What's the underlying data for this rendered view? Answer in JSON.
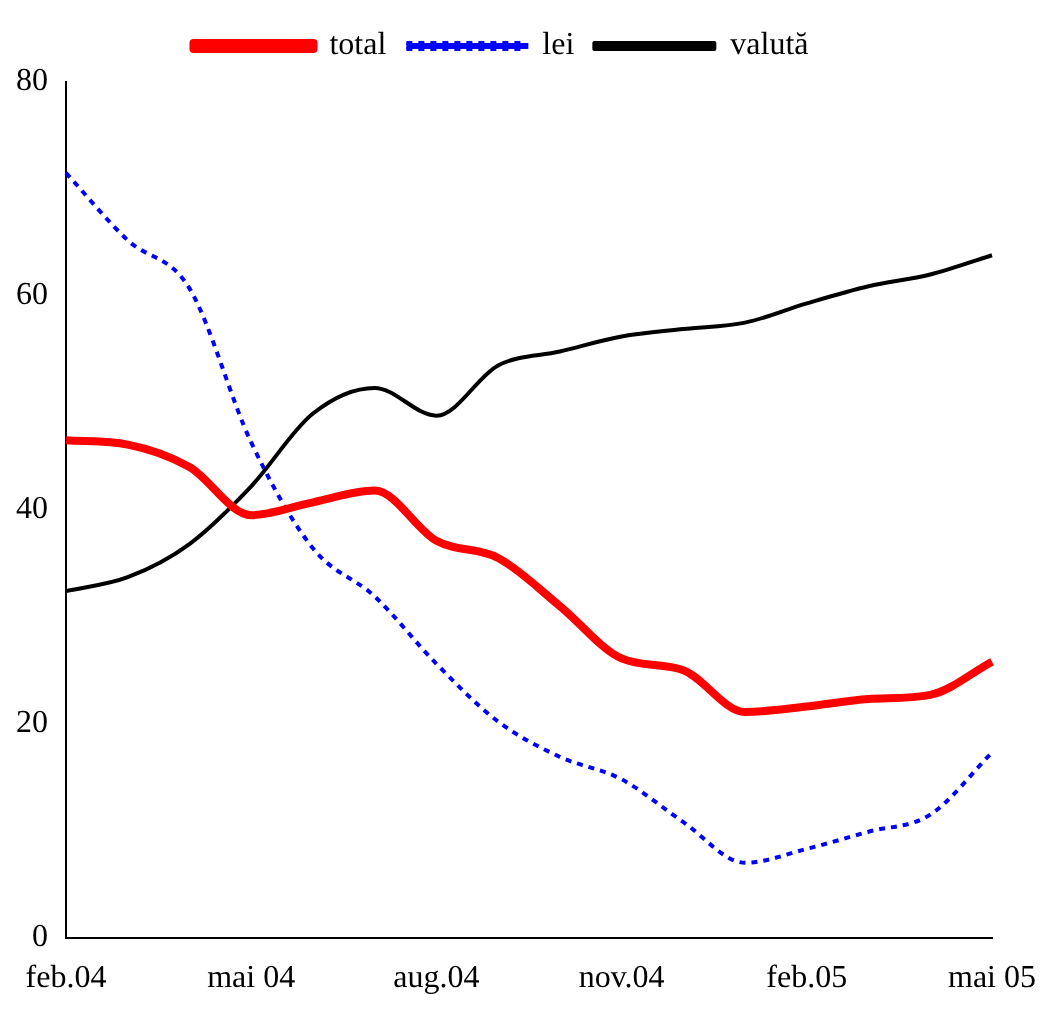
{
  "chart_data": {
    "type": "line",
    "categories": [
      "feb.04",
      null,
      null,
      "mai 04",
      null,
      null,
      "aug.04",
      null,
      null,
      "nov.04",
      null,
      null,
      "feb.05",
      null,
      null,
      "mai 05"
    ],
    "series": [
      {
        "name": "total",
        "color": "#ff0000",
        "values": [
          46.5,
          46.1,
          44,
          39.5,
          40.7,
          41.8,
          37.1,
          35.5,
          31,
          26.1,
          25,
          21.1,
          21.6,
          22.3,
          22.7,
          25.8
        ]
      },
      {
        "name": "lei",
        "color": "#0000ff",
        "line_style": "dotted",
        "values": [
          71.5,
          65.2,
          60.7,
          46.3,
          36.4,
          31.9,
          25.6,
          20.2,
          16.9,
          14.8,
          10.8,
          7,
          8.3,
          9.9,
          11.5,
          17.3
        ]
      },
      {
        "name": "valută",
        "color": "#000000",
        "values": [
          32.4,
          33.7,
          36.8,
          42.2,
          49,
          51.4,
          48.8,
          53.5,
          54.8,
          56.2,
          56.9,
          57.5,
          59.3,
          60.9,
          62,
          63.8
        ]
      }
    ],
    "ylim": [
      0,
      80
    ],
    "yticks": [
      0,
      20,
      40,
      60,
      80
    ],
    "grid": false,
    "legend": "top",
    "marker": "none",
    "line_style": "solid"
  }
}
